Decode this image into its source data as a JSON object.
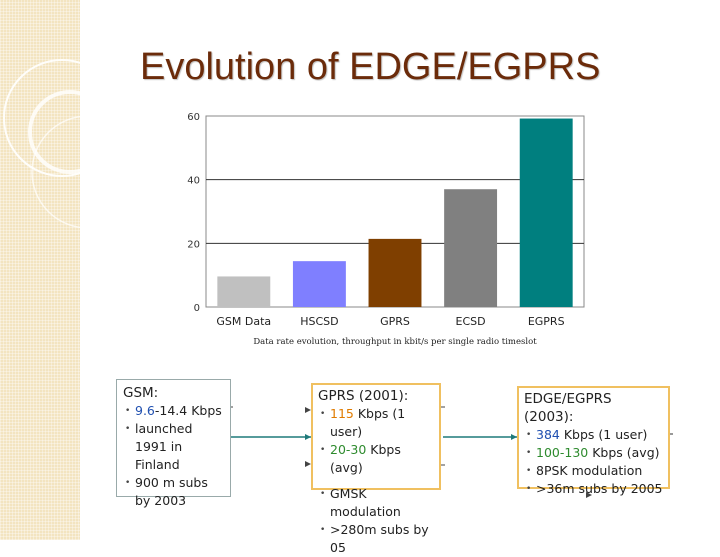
{
  "slide": {
    "title": "Evolution of EDGE/EGPRS",
    "accent_color": "#6b2b0a",
    "strip_color": "#f3e4c0"
  },
  "chart_data": {
    "type": "bar",
    "categories": [
      "GSM Data",
      "HSCSD",
      "GPRS",
      "ECSD",
      "EGPRS"
    ],
    "values": [
      9.6,
      14.4,
      21.4,
      37,
      59.2
    ],
    "colors": [
      "#c0c0c0",
      "#7f7fff",
      "#7f3f00",
      "#808080",
      "#007f7f"
    ],
    "xlabel": "Data rate evolution, throughput in kbit/s per single radio timeslot",
    "ylabel": "",
    "ylim": [
      0,
      60
    ],
    "yticks": [
      0,
      20,
      40,
      60
    ],
    "grid": true
  },
  "boxes": {
    "gsm": {
      "heading": "GSM:",
      "items": [
        {
          "parts": [
            {
              "text": "9.6",
              "cls": "hl-blue"
            },
            {
              "text": "-14.4 Kbps",
              "cls": ""
            }
          ]
        },
        {
          "parts": [
            {
              "text": "launched 1991 in Finland",
              "cls": ""
            }
          ]
        },
        {
          "parts": [
            {
              "text": "900 m subs by 2003",
              "cls": ""
            }
          ]
        }
      ]
    },
    "gprs": {
      "heading": "GPRS (2001):",
      "items": [
        {
          "parts": [
            {
              "text": "115",
              "cls": "hl-orange"
            },
            {
              "text": " Kbps (1 user)",
              "cls": ""
            }
          ]
        },
        {
          "parts": [
            {
              "text": "20-30",
              "cls": "hl-green"
            },
            {
              "text": " Kbps (avg)",
              "cls": ""
            }
          ]
        }
      ],
      "items2": [
        {
          "parts": [
            {
              "text": "GMSK modulation",
              "cls": ""
            }
          ]
        },
        {
          "parts": [
            {
              "text": ">280m subs by 05",
              "cls": ""
            }
          ]
        }
      ]
    },
    "edge": {
      "heading": "EDGE/EGPRS (2003):",
      "items": [
        {
          "parts": [
            {
              "text": "384",
              "cls": "hl-blue"
            },
            {
              "text": " Kbps (1 user)",
              "cls": ""
            }
          ]
        },
        {
          "parts": [
            {
              "text": "100-130",
              "cls": "hl-green"
            },
            {
              "text": " Kbps (avg)",
              "cls": ""
            }
          ]
        },
        {
          "parts": [
            {
              "text": "8PSK modulation",
              "cls": ""
            }
          ]
        },
        {
          "parts": [
            {
              "text": ">36m subs by 2005",
              "cls": ""
            }
          ]
        }
      ]
    }
  }
}
